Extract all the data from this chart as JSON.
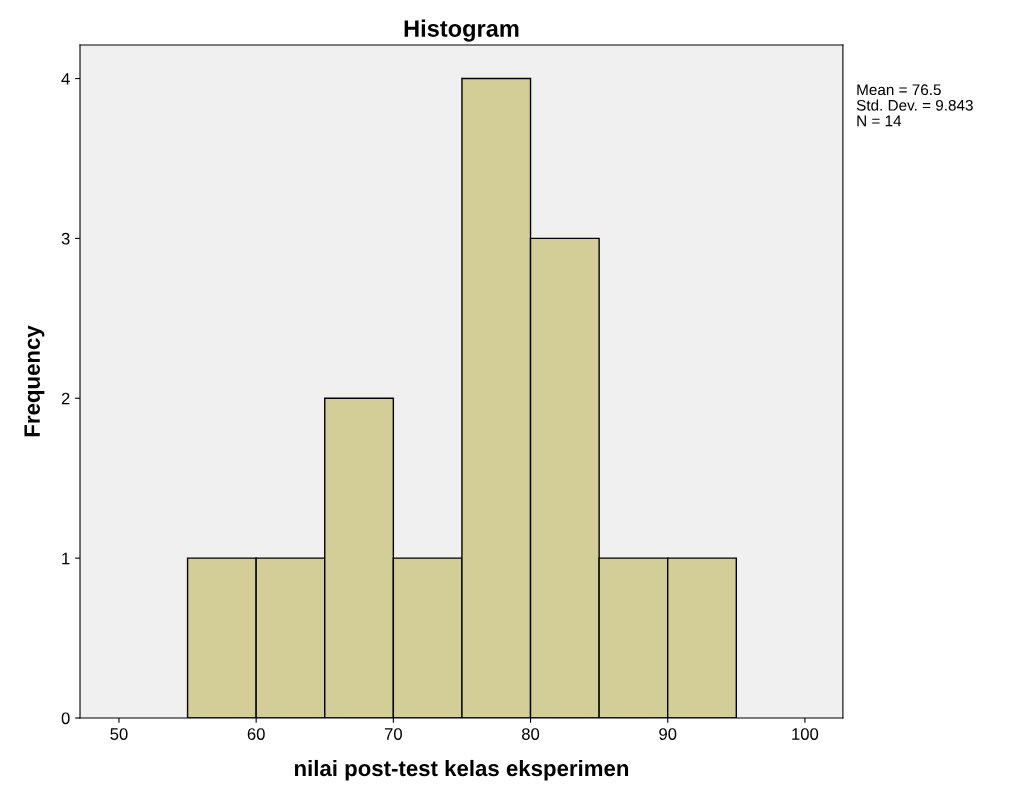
{
  "chart_data": {
    "type": "histogram",
    "title": "Histogram",
    "xlabel": "nilai post-test kelas eksperimen",
    "ylabel": "Frequency",
    "bins": [
      55,
      60,
      65,
      70,
      75,
      80,
      85,
      90,
      95
    ],
    "values": [
      1,
      1,
      2,
      1,
      4,
      3,
      1,
      1
    ],
    "color": "#d3ce97",
    "xlim": [
      47.16,
      102.77
    ],
    "xticks": [
      50,
      60,
      70,
      80,
      90,
      100
    ],
    "ylim": [
      0,
      4.21
    ],
    "yticks": [
      0,
      1,
      2,
      3,
      4
    ],
    "grid": false,
    "annotations": [
      "Mean = 76.5",
      "Std. Dev. = 9.843",
      "N = 14"
    ]
  }
}
